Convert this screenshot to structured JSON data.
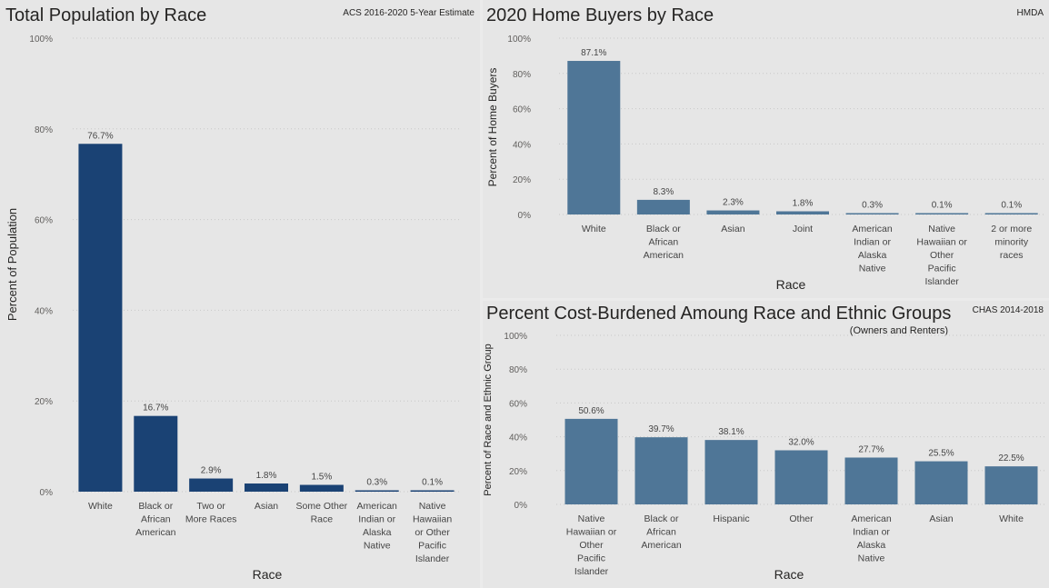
{
  "panels": {
    "population": {
      "title": "Total Population by Race",
      "source": "ACS 2016-2020 5-Year Estimate"
    },
    "home_buyers": {
      "title": "2020 Home Buyers by Race",
      "source": "HMDA"
    },
    "cost_burden": {
      "title": "Percent Cost-Burdened Amoung Race and Ethnic Groups",
      "subtitle": "(Owners and Renters)",
      "source": "CHAS 2014-2018"
    }
  },
  "colors": {
    "population_bar": "#1a4274",
    "home_buyers_bar": "#4f7697",
    "cost_burden_bar": "#4f7697"
  },
  "chart_data": [
    {
      "id": "population",
      "type": "bar",
      "categories": [
        "White",
        "Black or African American",
        "Two or More Races",
        "Asian",
        "Some Other Race",
        "American Indian or Alaska Native",
        "Native Hawaiian or Other Pacific Islander"
      ],
      "values": [
        76.7,
        16.7,
        2.9,
        1.8,
        1.5,
        0.3,
        0.1
      ],
      "data_labels": [
        "76.7%",
        "16.7%",
        "2.9%",
        "1.8%",
        "1.5%",
        "0.3%",
        "0.1%"
      ],
      "xlabel": "Race",
      "ylabel": "Percent of Population",
      "ylim": [
        0,
        100
      ],
      "yticks": [
        "0%",
        "20%",
        "40%",
        "60%",
        "80%",
        "100%"
      ],
      "grid": true
    },
    {
      "id": "home_buyers",
      "type": "bar",
      "categories": [
        "White",
        "Black or African American",
        "Asian",
        "Joint",
        "American Indian or Alaska Native",
        "Native Hawaiian or Other Pacific Islander",
        "2 or more minority races"
      ],
      "values": [
        87.1,
        8.3,
        2.3,
        1.8,
        0.3,
        0.1,
        0.1
      ],
      "data_labels": [
        "87.1%",
        "8.3%",
        "2.3%",
        "1.8%",
        "0.3%",
        "0.1%",
        "0.1%"
      ],
      "xlabel": "Race",
      "ylabel": "Percent of Home Buyers",
      "ylim": [
        0,
        100
      ],
      "yticks": [
        "0%",
        "20%",
        "40%",
        "60%",
        "80%",
        "100%"
      ],
      "grid": true
    },
    {
      "id": "cost_burden",
      "type": "bar",
      "categories": [
        "Native Hawaiian or Other Pacific Islander",
        "Black or African American",
        "Hispanic",
        "Other",
        "American Indian or Alaska Native",
        "Asian",
        "White"
      ],
      "values": [
        50.6,
        39.7,
        38.1,
        32.0,
        27.7,
        25.5,
        22.5
      ],
      "data_labels": [
        "50.6%",
        "39.7%",
        "38.1%",
        "32.0%",
        "27.7%",
        "25.5%",
        "22.5%"
      ],
      "xlabel": "Race",
      "ylabel": "Percent of Race and Ethnic Group",
      "ylim": [
        0,
        100
      ],
      "yticks": [
        "0%",
        "20%",
        "40%",
        "60%",
        "80%",
        "100%"
      ],
      "grid": true
    }
  ]
}
